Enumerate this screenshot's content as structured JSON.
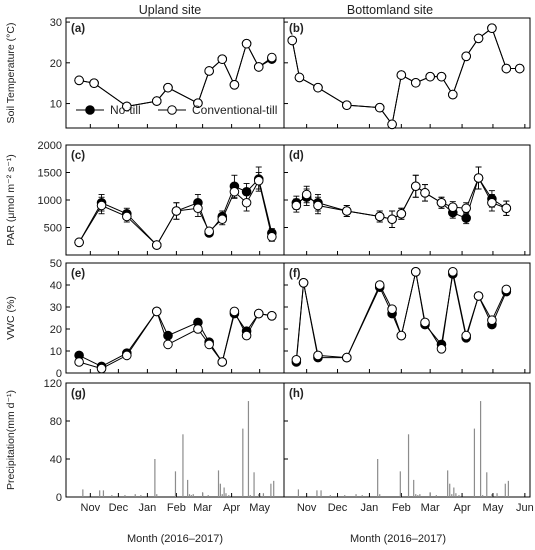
{
  "chart_data": {
    "type": "multi-panel",
    "columns": [
      "Upland site",
      "Bottomland site"
    ],
    "xlabel": "Month (2016–2017)",
    "x_ticks_upland": [
      "Nov",
      "Dec",
      "Jan",
      "Feb",
      "Mar",
      "Apr",
      "May"
    ],
    "x_ticks_bottomland": [
      "Nov",
      "Dec",
      "Jan",
      "Feb",
      "Mar",
      "Apr",
      "May",
      "Jun"
    ],
    "legend": [
      "No-till",
      "Conventional-till"
    ],
    "colors": {
      "no_till": "#000000",
      "conventional_till": "#ffffff",
      "precip_bar": "#8c8c8c",
      "axis": "#000000"
    },
    "rows": [
      {
        "key": "temp",
        "ylabel": "Soil Temperature (°C)",
        "yticks": [
          10,
          20,
          30
        ],
        "ylim": [
          4,
          31
        ]
      },
      {
        "key": "par",
        "ylabel": "PAR (μmol m⁻² s⁻¹)",
        "yticks": [
          500,
          1000,
          1500,
          2000
        ],
        "ylim": [
          0,
          2000
        ]
      },
      {
        "key": "vwc",
        "ylabel": "VWC (%)",
        "yticks": [
          0,
          10,
          20,
          30,
          40,
          50
        ],
        "ylim": [
          0,
          50
        ]
      },
      {
        "key": "precip",
        "ylabel": "Precipitation(mm d⁻¹)",
        "yticks": [
          0,
          40,
          80,
          120
        ],
        "ylim": [
          0,
          120
        ]
      }
    ],
    "panels": [
      {
        "label": "(a)",
        "row": "temp",
        "col": "upland",
        "type": "line",
        "series": [
          {
            "name": "Conventional-till",
            "x": [
              "2016-11-03",
              "2016-11-19",
              "2016-12-24",
              "2017-01-25",
              "2017-02-06",
              "2017-03-10",
              "2017-03-22",
              "2017-04-05",
              "2017-04-18",
              "2017-05-01",
              "2017-05-14",
              "2017-05-28"
            ],
            "y": [
              15.7,
              15.0,
              9.3,
              10.6,
              13.9,
              10.1,
              18.0,
              20.9,
              14.6,
              24.7,
              19.0,
              21.3
            ]
          },
          {
            "name": "No-till",
            "x": [
              "2016-11-03",
              "2016-11-19",
              "2016-12-24",
              "2017-01-25",
              "2017-02-06",
              "2017-03-10",
              "2017-03-22",
              "2017-04-05",
              "2017-04-18",
              "2017-05-01",
              "2017-05-14",
              "2017-05-28"
            ],
            "y": [
              15.7,
              15.0,
              9.3,
              10.6,
              13.9,
              10.1,
              18.0,
              20.9,
              14.6,
              24.7,
              19.0,
              20.9
            ]
          }
        ]
      },
      {
        "label": "(b)",
        "row": "temp",
        "col": "bottomland",
        "type": "line",
        "series": [
          {
            "name": "Conventional-till",
            "x": [
              "2016-11-01",
              "2016-11-08",
              "2016-11-26",
              "2016-12-24",
              "2017-01-25",
              "2017-02-06",
              "2017-02-15",
              "2017-03-01",
              "2017-03-15",
              "2017-03-26",
              "2017-04-06",
              "2017-04-19",
              "2017-05-01",
              "2017-05-14",
              "2017-05-28",
              "2017-06-10"
            ],
            "y": [
              25.5,
              16.4,
              13.9,
              9.6,
              9.0,
              4.9,
              17.0,
              15.1,
              16.6,
              16.6,
              12.2,
              21.6,
              26.0,
              28.5,
              18.6,
              18.6
            ]
          },
          {
            "name": "No-till",
            "x": [
              "2016-11-01",
              "2016-11-08",
              "2016-11-26",
              "2016-12-24",
              "2017-01-25",
              "2017-02-06",
              "2017-02-15",
              "2017-03-01",
              "2017-03-15",
              "2017-03-26",
              "2017-04-06",
              "2017-04-19",
              "2017-05-01",
              "2017-05-14",
              "2017-05-28",
              "2017-06-10"
            ],
            "y": [
              25.5,
              16.4,
              13.9,
              9.6,
              9.0,
              4.9,
              17.0,
              15.1,
              16.6,
              16.6,
              12.2,
              21.6,
              26.0,
              28.5,
              18.6,
              18.6
            ]
          }
        ]
      },
      {
        "label": "(c)",
        "row": "par",
        "col": "upland",
        "type": "line",
        "series": [
          {
            "name": "Conventional-till",
            "x": [
              "2016-11-03",
              "2016-11-27",
              "2016-12-24",
              "2017-01-25",
              "2017-02-15",
              "2017-03-10",
              "2017-03-22",
              "2017-04-05",
              "2017-04-18",
              "2017-05-01",
              "2017-05-14",
              "2017-05-28"
            ],
            "y": [
              230,
              900,
              700,
              180,
              800,
              850,
              430,
              650,
              1150,
              950,
              1350,
              330
            ],
            "err": [
              0,
              150,
              100,
              0,
              150,
              150,
              60,
              100,
              120,
              150,
              150,
              80
            ]
          },
          {
            "name": "No-till",
            "x": [
              "2016-11-03",
              "2016-11-27",
              "2016-12-24",
              "2017-01-25",
              "2017-02-15",
              "2017-03-10",
              "2017-03-22",
              "2017-04-05",
              "2017-04-18",
              "2017-05-01",
              "2017-05-14",
              "2017-05-28"
            ],
            "y": [
              230,
              950,
              750,
              180,
              800,
              950,
              400,
              700,
              1250,
              1150,
              1380,
              400
            ],
            "err": [
              0,
              150,
              100,
              0,
              150,
              150,
              60,
              100,
              200,
              150,
              220,
              80
            ]
          }
        ]
      },
      {
        "label": "(d)",
        "row": "par",
        "col": "bottomland",
        "type": "line",
        "series": [
          {
            "name": "Conventional-till",
            "x": [
              "2016-11-05",
              "2016-11-15",
              "2016-11-26",
              "2016-12-24",
              "2017-01-25",
              "2017-02-06",
              "2017-02-15",
              "2017-03-01",
              "2017-03-10",
              "2017-03-26",
              "2017-04-06",
              "2017-04-19",
              "2017-05-01",
              "2017-05-14",
              "2017-05-28"
            ],
            "y": [
              900,
              1100,
              900,
              800,
              700,
              650,
              750,
              1250,
              1130,
              950,
              870,
              850,
              1400,
              950,
              850
            ],
            "err": [
              120,
              150,
              150,
              100,
              100,
              150,
              100,
              200,
              150,
              100,
              100,
              100,
              200,
              150,
              130
            ]
          },
          {
            "name": "No-till",
            "x": [
              "2016-11-05",
              "2016-11-15",
              "2016-11-26",
              "2016-12-24",
              "2017-01-25",
              "2017-02-06",
              "2017-02-15",
              "2017-03-01",
              "2017-03-10",
              "2017-03-26",
              "2017-04-06",
              "2017-04-19",
              "2017-05-01",
              "2017-05-14",
              "2017-05-28"
            ],
            "y": [
              950,
              1050,
              950,
              800,
              700,
              650,
              750,
              1250,
              1130,
              950,
              770,
              670,
              1400,
              1020,
              850
            ],
            "err": [
              120,
              150,
              150,
              100,
              100,
              150,
              100,
              200,
              150,
              100,
              100,
              100,
              200,
              150,
              130
            ]
          }
        ]
      },
      {
        "label": "(e)",
        "row": "vwc",
        "col": "upland",
        "type": "line",
        "series": [
          {
            "name": "Conventional-till",
            "x": [
              "2016-11-03",
              "2016-11-27",
              "2016-12-24",
              "2017-01-25",
              "2017-02-06",
              "2017-03-10",
              "2017-03-22",
              "2017-04-05",
              "2017-04-18",
              "2017-05-01",
              "2017-05-14",
              "2017-05-28"
            ],
            "y": [
              5,
              2,
              8,
              28,
              13,
              20,
              13,
              5,
              28,
              17,
              27,
              26
            ]
          },
          {
            "name": "No-till",
            "x": [
              "2016-11-03",
              "2016-11-27",
              "2016-12-24",
              "2017-01-25",
              "2017-02-06",
              "2017-03-10",
              "2017-03-22",
              "2017-04-05",
              "2017-04-18",
              "2017-05-01",
              "2017-05-14",
              "2017-05-28"
            ],
            "y": [
              8,
              3,
              9,
              28,
              17,
              23,
              14,
              5,
              27,
              19,
              27,
              26
            ]
          }
        ]
      },
      {
        "label": "(f)",
        "row": "vwc",
        "col": "bottomland",
        "type": "line",
        "series": [
          {
            "name": "Conventional-till",
            "x": [
              "2016-11-05",
              "2016-11-12",
              "2016-11-26",
              "2016-12-24",
              "2017-01-25",
              "2017-02-06",
              "2017-02-15",
              "2017-03-01",
              "2017-03-10",
              "2017-03-26",
              "2017-04-06",
              "2017-04-19",
              "2017-05-01",
              "2017-05-14",
              "2017-05-28"
            ],
            "y": [
              6,
              41,
              8,
              7,
              40,
              29,
              17,
              46,
              23,
              11,
              46,
              17,
              35,
              24,
              38
            ]
          },
          {
            "name": "No-till",
            "x": [
              "2016-11-05",
              "2016-11-12",
              "2016-11-26",
              "2016-12-24",
              "2017-01-25",
              "2017-02-06",
              "2017-02-15",
              "2017-03-01",
              "2017-03-10",
              "2017-03-26",
              "2017-04-06",
              "2017-04-19",
              "2017-05-01",
              "2017-05-14",
              "2017-05-28"
            ],
            "y": [
              5,
              41,
              7,
              7,
              39,
              27,
              17,
              46,
              22,
              13,
              45,
              16,
              35,
              22,
              37
            ]
          }
        ]
      },
      {
        "label": "(g)",
        "row": "precip",
        "col": "upland",
        "type": "bar",
        "x": [
          "2016-11-07",
          "2016-11-25",
          "2016-11-29",
          "2016-12-08",
          "2016-12-22",
          "2017-01-02",
          "2017-01-08",
          "2017-01-23",
          "2017-01-25",
          "2017-02-14",
          "2017-02-22",
          "2017-02-27",
          "2017-03-01",
          "2017-03-03",
          "2017-03-05",
          "2017-03-15",
          "2017-03-21",
          "2017-04-01",
          "2017-04-03",
          "2017-04-05",
          "2017-04-07",
          "2017-04-09",
          "2017-04-12",
          "2017-04-27",
          "2017-05-03",
          "2017-05-05",
          "2017-05-09",
          "2017-05-14",
          "2017-05-19",
          "2017-05-27",
          "2017-05-30"
        ],
        "values": [
          8,
          7,
          7,
          2,
          2,
          3,
          2,
          40,
          3,
          27,
          66,
          18,
          3,
          2,
          3,
          5,
          2,
          28,
          14,
          3,
          10,
          4,
          2,
          72,
          101,
          2,
          26,
          3,
          4,
          14,
          17
        ]
      },
      {
        "label": "(h)",
        "row": "precip",
        "col": "bottomland",
        "type": "bar",
        "x": [
          "2016-11-07",
          "2016-11-25",
          "2016-11-29",
          "2016-12-08",
          "2016-12-22",
          "2017-01-02",
          "2017-01-08",
          "2017-01-23",
          "2017-01-25",
          "2017-02-14",
          "2017-02-22",
          "2017-02-27",
          "2017-03-01",
          "2017-03-03",
          "2017-03-05",
          "2017-03-15",
          "2017-03-21",
          "2017-04-01",
          "2017-04-03",
          "2017-04-05",
          "2017-04-07",
          "2017-04-09",
          "2017-04-12",
          "2017-04-27",
          "2017-05-03",
          "2017-05-05",
          "2017-05-09",
          "2017-05-14",
          "2017-05-19",
          "2017-05-27",
          "2017-05-30"
        ],
        "values": [
          8,
          7,
          7,
          2,
          2,
          3,
          2,
          40,
          3,
          27,
          66,
          18,
          3,
          2,
          3,
          5,
          2,
          28,
          14,
          3,
          10,
          4,
          2,
          72,
          101,
          2,
          26,
          3,
          4,
          14,
          17
        ]
      }
    ]
  }
}
